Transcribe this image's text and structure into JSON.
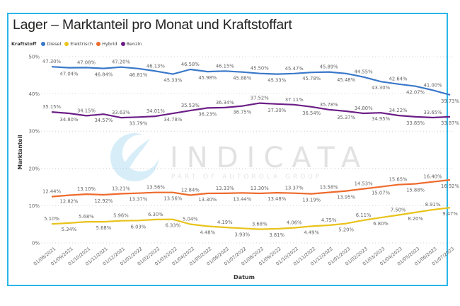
{
  "title": "Lager – Marktanteil pro Monat und Kraftstoffart",
  "legend": {
    "title": "Kraftstoff",
    "items": [
      {
        "label": "Diesel",
        "color": "#3a78c9"
      },
      {
        "label": "Elektrisch",
        "color": "#e9c31b"
      },
      {
        "label": "Hybrid",
        "color": "#ee6a2c"
      },
      {
        "label": "Benzin",
        "color": "#6b1e86"
      }
    ]
  },
  "watermark": {
    "brand": "INDICATA",
    "tagline": "PART OF AUTOROLA GROUP"
  },
  "chart_data": {
    "type": "line",
    "title": "Lager – Marktanteil pro Monat und Kraftstoffart",
    "xlabel": "Datum",
    "ylabel": "Marktanteil",
    "ylim": [
      0,
      50
    ],
    "yticks": [
      "0%",
      "10%",
      "20%",
      "30%",
      "40%",
      "50%"
    ],
    "ytick_values": [
      0,
      10,
      20,
      30,
      40,
      50
    ],
    "grid": true,
    "legend_position": "top-left",
    "categories": [
      "01/08/2021",
      "01/09/2021",
      "01/10/2021",
      "01/11/2021",
      "01/12/2021",
      "01/01/2022",
      "01/02/2022",
      "01/03/2022",
      "01/04/2022",
      "01/05/2022",
      "01/06/2022",
      "01/07/2022",
      "01/08/2022",
      "01/09/2022",
      "01/10/2022",
      "01/11/2022",
      "01/12/2022",
      "01/01/2023",
      "01/02/2023",
      "01/03/2023",
      "01/04/2023",
      "01/05/2023",
      "01/06/2023",
      "01/07/2023"
    ],
    "series": [
      {
        "name": "Diesel",
        "color": "#3a78c9",
        "values": [
          47.3,
          47.04,
          47.08,
          46.84,
          47.2,
          46.81,
          46.13,
          45.33,
          46.58,
          45.98,
          46.15,
          45.88,
          45.5,
          45.33,
          45.47,
          45.78,
          45.89,
          45.48,
          44.55,
          43.3,
          42.64,
          42.07,
          41.0,
          39.73
        ]
      },
      {
        "name": "Elektrisch",
        "color": "#e9c31b",
        "values": [
          5.1,
          5.34,
          5.68,
          5.68,
          5.96,
          6.03,
          6.3,
          6.33,
          5.04,
          4.48,
          4.19,
          3.93,
          3.68,
          3.81,
          4.06,
          4.49,
          4.75,
          5.2,
          6.11,
          6.8,
          7.5,
          8.2,
          8.91,
          9.47
        ]
      },
      {
        "name": "Hybrid",
        "color": "#ee6a2c",
        "values": [
          12.44,
          12.82,
          13.1,
          12.92,
          13.21,
          13.37,
          13.56,
          13.56,
          12.84,
          13.3,
          13.33,
          13.44,
          13.3,
          13.48,
          13.37,
          13.19,
          13.58,
          13.95,
          14.53,
          15.07,
          15.65,
          15.88,
          16.4,
          16.92
        ]
      },
      {
        "name": "Benzin",
        "color": "#6b1e86",
        "values": [
          35.15,
          34.8,
          34.15,
          34.57,
          33.63,
          33.79,
          34.01,
          34.78,
          35.53,
          36.23,
          36.34,
          36.75,
          37.52,
          37.3,
          37.11,
          36.54,
          35.78,
          35.37,
          34.8,
          34.95,
          34.22,
          33.85,
          33.65,
          33.87
        ]
      }
    ]
  }
}
